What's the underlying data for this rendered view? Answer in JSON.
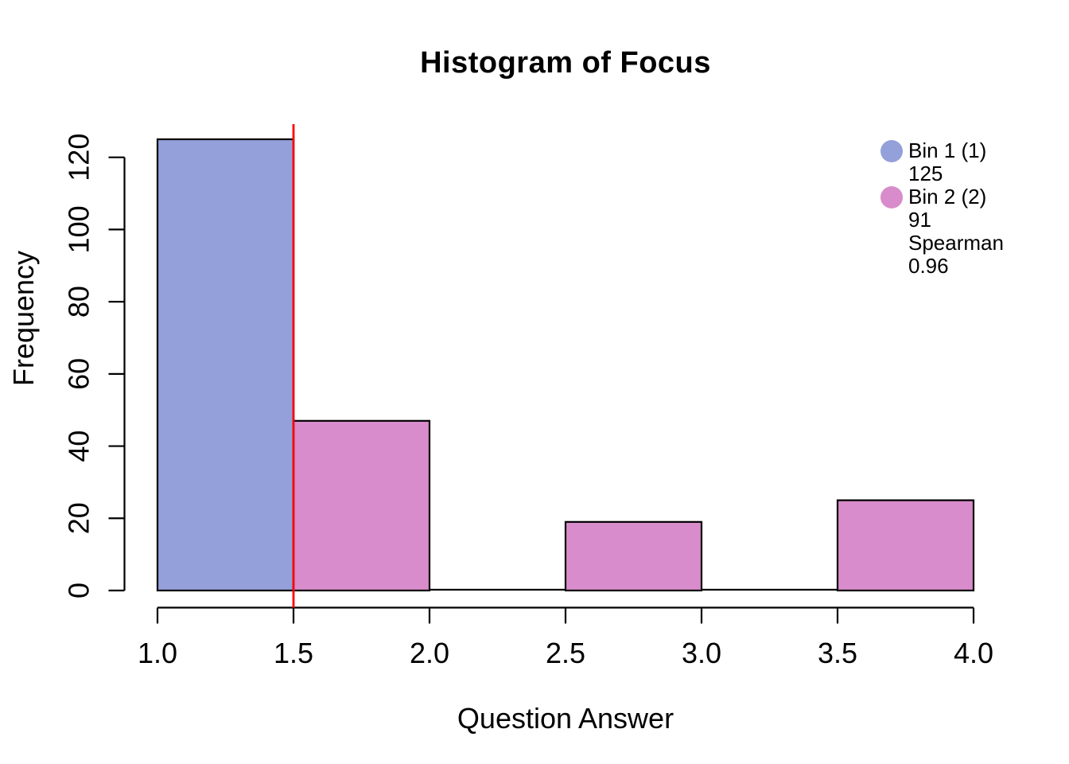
{
  "chart_data": {
    "type": "bar",
    "subtype": "histogram",
    "title": "Histogram of Focus",
    "xlabel": "Question Answer",
    "ylabel": "Frequency",
    "xlim": [
      1.0,
      4.0
    ],
    "ylim": [
      0,
      125
    ],
    "x_ticks": [
      "1.0",
      "1.5",
      "2.0",
      "2.5",
      "3.0",
      "3.5",
      "4.0"
    ],
    "y_ticks": [
      "0",
      "20",
      "40",
      "60",
      "80",
      "100",
      "120"
    ],
    "grid": false,
    "axis_color": "#000000",
    "bar_edge_color": "#000000",
    "bins": [
      {
        "x_start": 1.0,
        "x_end": 1.5,
        "count": 125,
        "group": "Bin 1",
        "color": "#94A0D9"
      },
      {
        "x_start": 1.5,
        "x_end": 2.0,
        "count": 47,
        "group": "Bin 2",
        "color": "#D88CCB"
      },
      {
        "x_start": 2.0,
        "x_end": 2.5,
        "count": 0,
        "group": "Bin 2",
        "color": "#D88CCB"
      },
      {
        "x_start": 2.5,
        "x_end": 3.0,
        "count": 19,
        "group": "Bin 2",
        "color": "#D88CCB"
      },
      {
        "x_start": 3.0,
        "x_end": 3.5,
        "count": 0,
        "group": "Bin 2",
        "color": "#D88CCB"
      },
      {
        "x_start": 3.5,
        "x_end": 4.0,
        "count": 25,
        "group": "Bin 2",
        "color": "#D88CCB"
      }
    ],
    "reference_line": {
      "x": 1.5,
      "color": "#FF0000"
    },
    "legend": {
      "position": "top-right",
      "entries": [
        {
          "label": "Bin 1 (1)",
          "color": "#94A0D9",
          "sublines": [
            "125"
          ]
        },
        {
          "label": "Bin 2 (2)",
          "color": "#D88CCB",
          "sublines": [
            "91",
            "Spearman",
            "0.96"
          ]
        }
      ]
    }
  }
}
